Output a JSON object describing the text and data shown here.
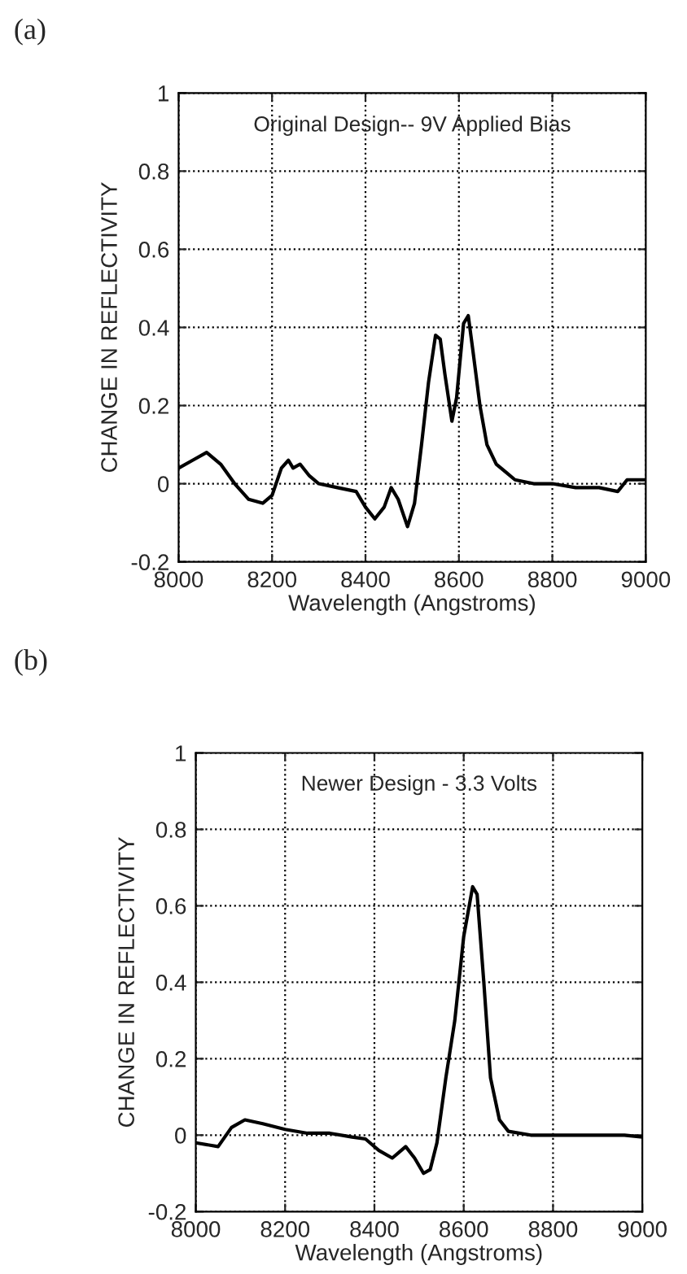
{
  "chart_data": [
    {
      "type": "line",
      "title": "(a)",
      "xlabel": "Wavelength (Angstroms)",
      "ylabel": "CHANGE IN REFLECTIVITY",
      "annotations": [
        "Original Design-- 9V Applied Bias"
      ],
      "xlim": [
        8000,
        9000
      ],
      "ylim": [
        -0.2,
        1
      ],
      "xticks": [
        8000,
        8200,
        8400,
        8600,
        8800,
        9000
      ],
      "yticks": [
        -0.2,
        0,
        0.2,
        0.4,
        0.6,
        0.8,
        1
      ],
      "grid": true,
      "line_style": "solid",
      "series": [
        {
          "color": "#000000",
          "x": [
            8000,
            8030,
            8060,
            8090,
            8120,
            8150,
            8180,
            8200,
            8220,
            8235,
            8245,
            8260,
            8280,
            8300,
            8340,
            8380,
            8400,
            8420,
            8440,
            8455,
            8470,
            8490,
            8505,
            8520,
            8535,
            8550,
            8560,
            8570,
            8585,
            8595,
            8610,
            8620,
            8630,
            8645,
            8660,
            8680,
            8700,
            8720,
            8760,
            8800,
            8850,
            8900,
            8940,
            8960,
            9000
          ],
          "values": [
            0.04,
            0.06,
            0.08,
            0.05,
            0.0,
            -0.04,
            -0.05,
            -0.03,
            0.04,
            0.06,
            0.04,
            0.05,
            0.02,
            0.0,
            -0.01,
            -0.02,
            -0.06,
            -0.09,
            -0.06,
            -0.01,
            -0.04,
            -0.11,
            -0.05,
            0.1,
            0.26,
            0.38,
            0.37,
            0.28,
            0.16,
            0.22,
            0.41,
            0.43,
            0.34,
            0.2,
            0.1,
            0.05,
            0.03,
            0.01,
            0.0,
            0.0,
            -0.01,
            -0.01,
            -0.02,
            0.01,
            0.01
          ]
        }
      ]
    },
    {
      "type": "line",
      "title": "(b)",
      "xlabel": "Wavelength (Angstroms)",
      "ylabel": "CHANGE IN REFLECTIVITY",
      "annotations": [
        "Newer Design - 3.3 Volts"
      ],
      "xlim": [
        8000,
        9000
      ],
      "ylim": [
        -0.2,
        1
      ],
      "xticks": [
        8000,
        8200,
        8400,
        8600,
        8800,
        9000
      ],
      "yticks": [
        -0.2,
        0,
        0.2,
        0.4,
        0.6,
        0.8,
        1
      ],
      "grid": true,
      "line_style": "solid",
      "series": [
        {
          "color": "#000000",
          "x": [
            8000,
            8050,
            8080,
            8110,
            8150,
            8200,
            8250,
            8300,
            8350,
            8380,
            8410,
            8440,
            8460,
            8470,
            8490,
            8510,
            8525,
            8540,
            8560,
            8580,
            8600,
            8620,
            8630,
            8645,
            8660,
            8680,
            8700,
            8750,
            8900,
            8960,
            9000
          ],
          "values": [
            -0.02,
            -0.03,
            0.02,
            0.04,
            0.03,
            0.015,
            0.005,
            0.005,
            -0.005,
            -0.01,
            -0.04,
            -0.06,
            -0.04,
            -0.03,
            -0.06,
            -0.1,
            -0.09,
            -0.02,
            0.15,
            0.3,
            0.52,
            0.65,
            0.63,
            0.4,
            0.15,
            0.04,
            0.01,
            0.0,
            0.0,
            0.0,
            -0.005
          ]
        }
      ]
    }
  ]
}
